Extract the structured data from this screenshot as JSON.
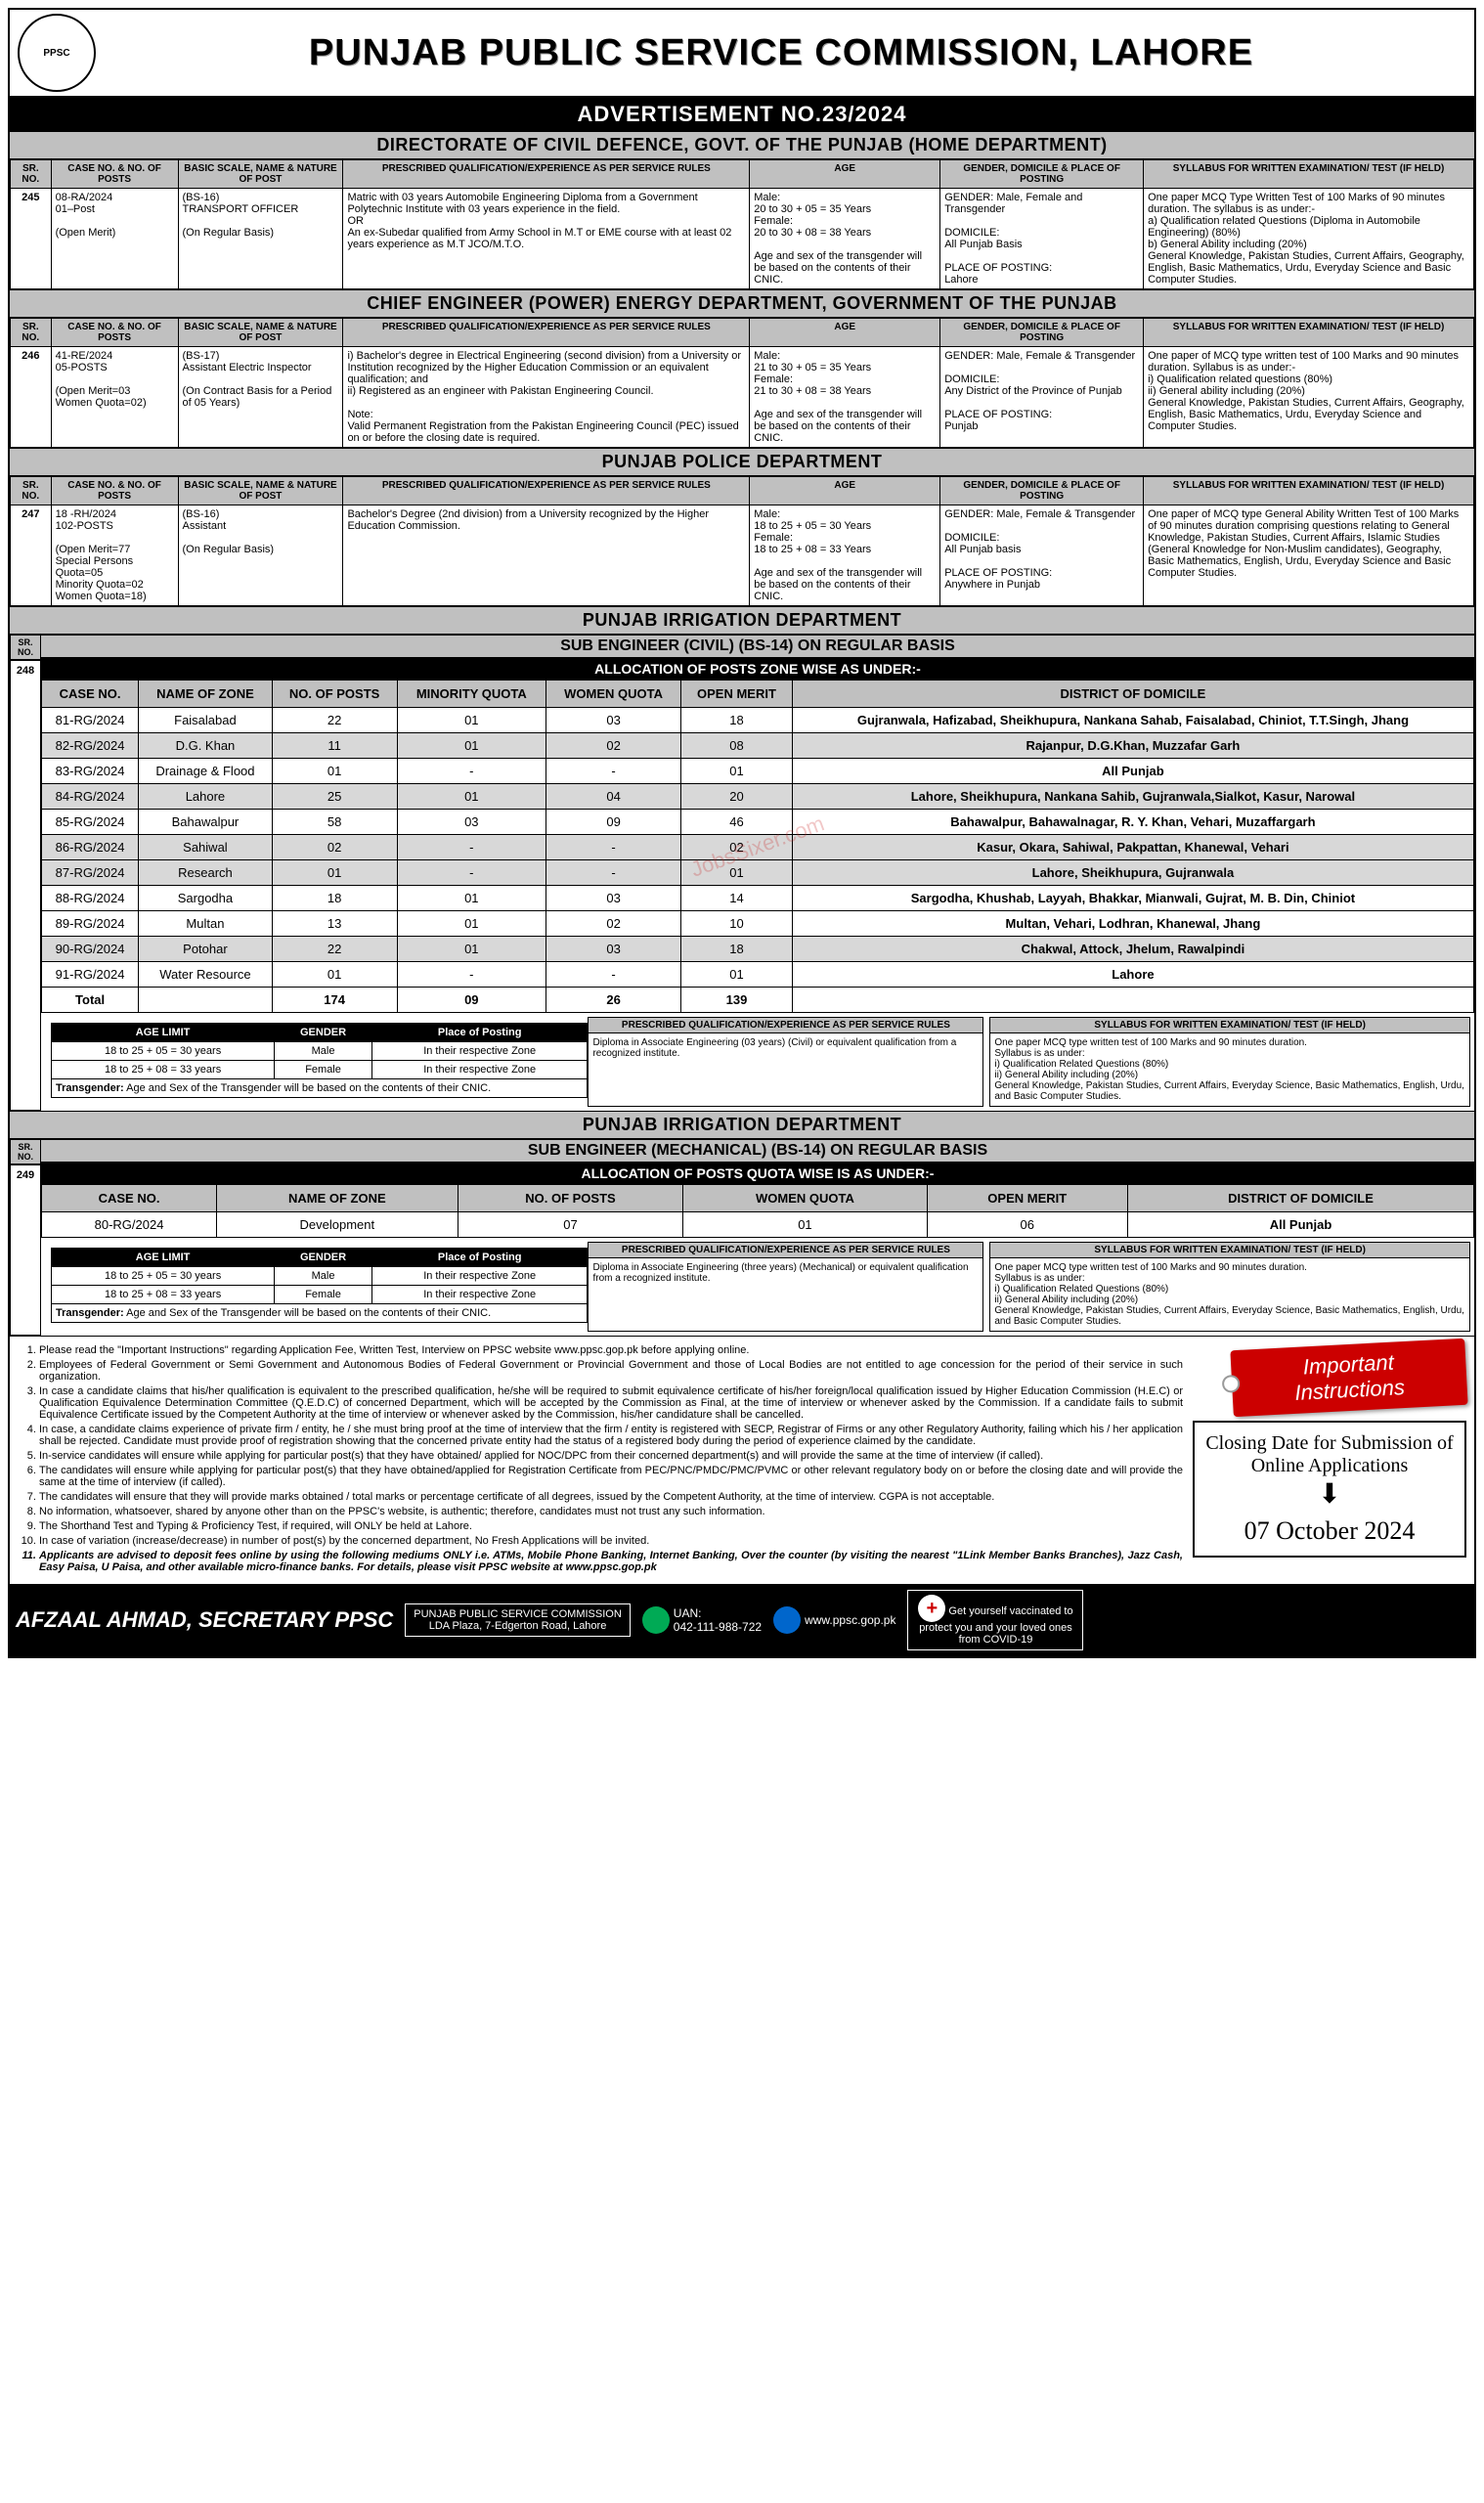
{
  "header": {
    "logo_text": "PPSC",
    "title": "PUNJAB PUBLIC SERVICE COMMISSION, LAHORE",
    "adv": "ADVERTISEMENT NO.23/2024"
  },
  "columns": {
    "sr": "SR. NO.",
    "case": "CASE NO. & NO. OF POSTS",
    "scale": "BASIC SCALE, NAME & NATURE OF POST",
    "qual": "PRESCRIBED QUALIFICATION/EXPERIENCE AS PER SERVICE RULES",
    "age": "AGE",
    "gender": "GENDER, DOMICILE & PLACE OF POSTING",
    "syll": "SYLLABUS FOR WRITTEN EXAMINATION/ TEST (IF HELD)"
  },
  "departments": [
    {
      "title": "DIRECTORATE OF CIVIL DEFENCE, GOVT. OF THE PUNJAB (HOME DEPARTMENT)",
      "rows": [
        {
          "sr": "245",
          "case": "08-RA/2024\n01–Post\n\n(Open Merit)",
          "scale": "(BS-16)\nTRANSPORT OFFICER\n\n(On Regular Basis)",
          "qual": "Matric with 03 years Automobile Engineering Diploma from a Government Polytechnic Institute with 03 years experience in the field.\nOR\nAn ex-Subedar qualified from Army School in M.T or EME course with at least 02 years experience as M.T JCO/M.T.O.",
          "age": "Male:\n20 to 30 + 05 = 35 Years\nFemale:\n20 to 30 + 08 = 38 Years\n\nAge and sex of the transgender will be based on the contents of their CNIC.",
          "gender": "GENDER: Male, Female and Transgender\n\nDOMICILE:\nAll Punjab Basis\n\nPLACE OF POSTING:\nLahore",
          "syll": "One paper MCQ Type Written Test of 100 Marks of 90 minutes duration. The syllabus is as under:-\na) Qualification related Questions (Diploma in Automobile Engineering) (80%)\nb) General Ability including (20%)\nGeneral Knowledge, Pakistan Studies, Current Affairs, Geography, English, Basic Mathematics, Urdu, Everyday Science and Basic Computer Studies."
        }
      ]
    },
    {
      "title": "CHIEF ENGINEER (POWER) ENERGY DEPARTMENT, GOVERNMENT OF THE PUNJAB",
      "rows": [
        {
          "sr": "246",
          "case": "41-RE/2024\n05-POSTS\n\n(Open Merit=03\nWomen Quota=02)",
          "scale": "(BS-17)\nAssistant Electric Inspector\n\n(On Contract Basis for a Period of 05 Years)",
          "qual": "i) Bachelor's degree in Electrical Engineering (second division) from a University or Institution recognized by the Higher Education Commission or an equivalent qualification; and\nii) Registered as an engineer with Pakistan Engineering Council.\n\nNote:\nValid Permanent Registration from the Pakistan Engineering Council (PEC) issued on or before the closing date is required.",
          "age": "Male:\n21 to 30 + 05 = 35 Years\nFemale:\n21 to 30 + 08 = 38 Years\n\nAge and sex of the transgender will be based on the contents of their CNIC.",
          "gender": "GENDER: Male, Female & Transgender\n\nDOMICILE:\nAny District of the Province of Punjab\n\nPLACE OF POSTING:\nPunjab",
          "syll": "One paper of MCQ type written test of 100 Marks and 90 minutes duration. Syllabus is as under:-\ni) Qualification related questions (80%)\nii) General ability including (20%)\nGeneral Knowledge, Pakistan Studies, Current Affairs, Geography, English, Basic Mathematics, Urdu, Everyday Science and Computer Studies."
        }
      ]
    },
    {
      "title": "PUNJAB POLICE DEPARTMENT",
      "rows": [
        {
          "sr": "247",
          "case": "18 -RH/2024\n102-POSTS\n\n(Open Merit=77\nSpecial Persons Quota=05\nMinority Quota=02\nWomen Quota=18)",
          "scale": "(BS-16)\nAssistant\n\n(On Regular Basis)",
          "qual": "Bachelor's Degree (2nd division) from a University recognized by the Higher Education Commission.",
          "age": "Male:\n18 to 25 + 05 = 30 Years\nFemale:\n18 to 25 + 08 = 33 Years\n\nAge and sex of the transgender will be based on the contents of their CNIC.",
          "gender": "GENDER: Male, Female & Transgender\n\nDOMICILE:\nAll Punjab basis\n\nPLACE OF POSTING:\nAnywhere in Punjab",
          "syll": "One paper of MCQ type General Ability Written Test of 100 Marks of 90 minutes duration comprising questions relating to General Knowledge, Pakistan Studies, Current Affairs, Islamic Studies (General Knowledge for Non-Muslim candidates), Geography, Basic Mathematics, English, Urdu, Everyday Science and Basic Computer Studies."
        }
      ]
    }
  ],
  "irrigation_civil": {
    "dept": "PUNJAB IRRIGATION DEPARTMENT",
    "sub": "SUB ENGINEER (CIVIL) (BS-14) ON REGULAR BASIS",
    "alloc": "ALLOCATION OF POSTS ZONE WISE AS UNDER:-",
    "sr": "248",
    "headers": [
      "CASE NO.",
      "NAME OF ZONE",
      "NO. OF POSTS",
      "MINORITY QUOTA",
      "WOMEN QUOTA",
      "OPEN MERIT",
      "DISTRICT OF DOMICILE"
    ],
    "rows": [
      [
        "81-RG/2024",
        "Faisalabad",
        "22",
        "01",
        "03",
        "18",
        "Gujranwala, Hafizabad, Sheikhupura, Nankana Sahab, Faisalabad, Chiniot, T.T.Singh, Jhang"
      ],
      [
        "82-RG/2024",
        "D.G. Khan",
        "11",
        "01",
        "02",
        "08",
        "Rajanpur, D.G.Khan,  Muzzafar Garh"
      ],
      [
        "83-RG/2024",
        "Drainage & Flood",
        "01",
        "-",
        "-",
        "01",
        "All Punjab"
      ],
      [
        "84-RG/2024",
        "Lahore",
        "25",
        "01",
        "04",
        "20",
        "Lahore, Sheikhupura, Nankana Sahib, Gujranwala,Sialkot, Kasur, Narowal"
      ],
      [
        "85-RG/2024",
        "Bahawalpur",
        "58",
        "03",
        "09",
        "46",
        "Bahawalpur, Bahawalnagar, R. Y. Khan, Vehari, Muzaffargarh"
      ],
      [
        "86-RG/2024",
        "Sahiwal",
        "02",
        "-",
        "-",
        "02",
        "Kasur, Okara, Sahiwal, Pakpattan, Khanewal, Vehari"
      ],
      [
        "87-RG/2024",
        "Research",
        "01",
        "-",
        "-",
        "01",
        "Lahore, Sheikhupura, Gujranwala"
      ],
      [
        "88-RG/2024",
        "Sargodha",
        "18",
        "01",
        "03",
        "14",
        "Sargodha, Khushab, Layyah, Bhakkar, Mianwali, Gujrat, M. B. Din, Chiniot"
      ],
      [
        "89-RG/2024",
        "Multan",
        "13",
        "01",
        "02",
        "10",
        "Multan,  Vehari,  Lodhran, Khanewal,  Jhang"
      ],
      [
        "90-RG/2024",
        "Potohar",
        "22",
        "01",
        "03",
        "18",
        "Chakwal, Attock, Jhelum, Rawalpindi"
      ],
      [
        "91-RG/2024",
        "Water Resource",
        "01",
        "-",
        "-",
        "01",
        "Lahore"
      ]
    ],
    "total": [
      "Total",
      "",
      "174",
      "09",
      "26",
      "139",
      ""
    ],
    "age_gender": {
      "headers": [
        "AGE LIMIT",
        "GENDER",
        "Place of Posting"
      ],
      "rows": [
        [
          "18 to 25 + 05 = 30 years",
          "Male",
          "In their respective Zone"
        ],
        [
          "18 to 25 + 08 = 33 years",
          "Female",
          "In their respective Zone"
        ]
      ],
      "trans": "Transgender: Age and Sex of the Transgender will be based on the contents of their CNIC."
    },
    "qual_head": "PRESCRIBED QUALIFICATION/EXPERIENCE AS PER SERVICE RULES",
    "qual_body": "Diploma in Associate Engineering (03 years) (Civil) or equivalent qualification from a recognized institute.",
    "syll_head": "SYLLABUS FOR WRITTEN EXAMINATION/ TEST (IF HELD)",
    "syll_body": "One paper MCQ type written test of 100 Marks and 90 minutes duration.\nSyllabus is as under:\ni) Qualification Related Questions (80%)\nii) General Ability including (20%)\nGeneral Knowledge, Pakistan Studies, Current Affairs, Everyday Science, Basic Mathematics, English, Urdu, and Basic Computer Studies."
  },
  "irrigation_mech": {
    "dept": "PUNJAB IRRIGATION DEPARTMENT",
    "sub": "SUB ENGINEER (MECHANICAL) (BS-14) ON REGULAR BASIS",
    "alloc": "ALLOCATION OF POSTS QUOTA WISE IS AS UNDER:-",
    "sr": "249",
    "headers": [
      "CASE NO.",
      "NAME OF ZONE",
      "NO. OF POSTS",
      "WOMEN QUOTA",
      "OPEN MERIT",
      "DISTRICT OF DOMICILE"
    ],
    "rows": [
      [
        "80-RG/2024",
        "Development",
        "07",
        "01",
        "06",
        "All Punjab"
      ]
    ],
    "age_gender": {
      "headers": [
        "AGE LIMIT",
        "GENDER",
        "Place of Posting"
      ],
      "rows": [
        [
          "18 to 25 + 05 = 30 years",
          "Male",
          "In their respective Zone"
        ],
        [
          "18 to 25 + 08 = 33 years",
          "Female",
          "In their respective Zone"
        ]
      ],
      "trans": "Transgender: Age and Sex of the Transgender will be based on the contents of their CNIC."
    },
    "qual_head": "PRESCRIBED QUALIFICATION/EXPERIENCE AS PER SERVICE RULES",
    "qual_body": "Diploma in Associate Engineering (three years) (Mechanical) or equivalent qualification from a recognized institute.",
    "syll_head": "SYLLABUS FOR WRITTEN EXAMINATION/ TEST (IF HELD)",
    "syll_body": "One paper MCQ type written test of 100 Marks and 90 minutes duration.\nSyllabus is as under:\ni) Qualification Related Questions (80%)\nii) General Ability including (20%)\nGeneral Knowledge, Pakistan Studies, Current Affairs, Everyday Science, Basic Mathematics, English, Urdu, and Basic Computer Studies."
  },
  "instructions": [
    "Please read the \"Important Instructions\" regarding Application Fee, Written Test, Interview on PPSC website  www.ppsc.gop.pk  before applying online.",
    "Employees of Federal Government or Semi Government and Autonomous Bodies of Federal Government or Provincial Government and those of Local Bodies are not entitled to age concession for the period of their service in such organization.",
    "In case a candidate claims that his/her qualification is equivalent to the prescribed qualification, he/she will be required to submit equivalence certificate of his/her foreign/local qualification issued by Higher Education Commission (H.E.C) or Qualification Equivalence Determination Committee (Q.E.D.C) of concerned Department, which will be accepted by the Commission as Final, at the time of interview or whenever asked by the Commission. If a candidate fails to submit Equivalence Certificate issued by the Competent Authority at the time of interview or whenever asked by the Commission, his/her candidature shall be cancelled.",
    "In case, a candidate claims experience of private firm / entity,  he / she must bring proof at the time of interview that the firm / entity is registered with SECP, Registrar of Firms or any other Regulatory Authority, failing which his / her application shall be rejected. Candidate must provide proof of registration showing that the concerned private entity had the status of a registered body during the period of experience claimed by the candidate.",
    "In-service candidates will ensure while applying for particular post(s) that they have obtained/ applied for NOC/DPC from their concerned department(s) and will provide the same at the time of interview (if called).",
    "The candidates will ensure while applying for particular post(s) that they have obtained/applied for Registration Certificate from PEC/PNC/PMDC/PMC/PVMC or other relevant regulatory body on or before the closing date and will provide the same at the time of interview (if called).",
    "The candidates will ensure that they will provide marks obtained / total marks or percentage certificate of all degrees, issued by the Competent Authority, at the time of interview. CGPA is not acceptable.",
    "No information, whatsoever, shared by anyone other than on the PPSC's website, is authentic; therefore, candidates must not trust any such information.",
    "The Shorthand Test and  Typing & Proficiency Test, if required,  will ONLY be held at Lahore.",
    "In case of variation (increase/decrease) in number of post(s) by the concerned department, No Fresh Applications will be invited.",
    "Applicants are advised to deposit fees online by using the following mediums ONLY i.e. ATMs, Mobile Phone Banking, Internet Banking, Over the counter (by visiting the nearest \"1Link Member Banks Branches), Jazz Cash, Easy Paisa, U Paisa, and other available micro-finance banks. For details, please visit PPSC website at www.ppsc.gop.pk"
  ],
  "tag": "Important Instructions",
  "closing": {
    "label": "Closing Date for Submission of Online Applications",
    "date": "07 October 2024"
  },
  "footer": {
    "name": "AFZAAL AHMAD, SECRETARY PPSC",
    "address": "PUNJAB PUBLIC SERVICE COMMISSION\nLDA Plaza, 7-Edgerton Road, Lahore",
    "uan_label": "UAN:",
    "uan": "042-111-988-722",
    "web": "www.ppsc.gop.pk",
    "covid": "Get yourself vaccinated to protect you and your loved ones from COVID-19"
  },
  "watermark": "JobsSixer.com"
}
